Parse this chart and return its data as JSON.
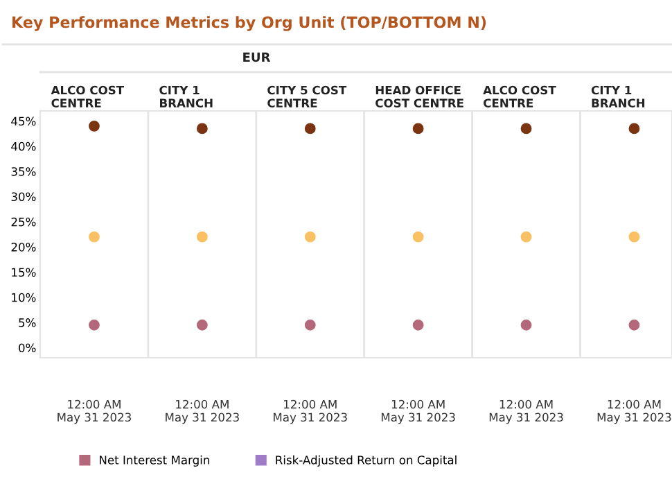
{
  "chart_data": {
    "type": "scatter",
    "title": "Key Performance Metrics by Org Unit (TOP/BOTTOM N)",
    "subtitle": "EUR",
    "categories": [
      "ALCO COST\nCENTRE",
      "CITY 1\nBRANCH",
      "CITY 5 COST\nCENTRE",
      "HEAD OFFICE\nCOST CENTRE",
      "ALCO COST\nCENTRE",
      "CITY 1\nBRANCH"
    ],
    "annotations": [
      "12:00 AM\nMay 31 2023",
      "12:00 AM\nMay 31 2023",
      "12:00 AM\nMay 31 2023",
      "12:00 AM\nMay 31 2023",
      "12:00 AM\nMay 31 2023",
      "12:00 AM\nMay 31 2023"
    ],
    "series": [
      {
        "color": "#7a3412",
        "values": [
          44,
          43.5,
          43.5,
          43.5,
          43.5,
          43.5
        ]
      },
      {
        "color": "#f9c064",
        "values": [
          22,
          22,
          22,
          22,
          22,
          22
        ]
      },
      {
        "name": "Net Interest Margin",
        "color": "#b3687c",
        "values": [
          4.5,
          4.5,
          4.5,
          4.5,
          4.5,
          4.5
        ]
      },
      {
        "name": "Risk-Adjusted Return on Capital",
        "color": "#a07cc8",
        "values": [
          null,
          null,
          null,
          null,
          null,
          null
        ]
      }
    ],
    "ylim": [
      -2,
      47
    ],
    "yticks": [
      {
        "value": 0,
        "label": "0%"
      },
      {
        "value": 5,
        "label": "5%"
      },
      {
        "value": 10,
        "label": "10%"
      },
      {
        "value": 15,
        "label": "15%"
      },
      {
        "value": 20,
        "label": "20%"
      },
      {
        "value": 25,
        "label": "25%"
      },
      {
        "value": 30,
        "label": "30%"
      },
      {
        "value": 35,
        "label": "35%"
      },
      {
        "value": 40,
        "label": "40%"
      },
      {
        "value": 45,
        "label": "45%"
      }
    ],
    "marker": "circle",
    "grid": false,
    "legend": "bottom"
  }
}
